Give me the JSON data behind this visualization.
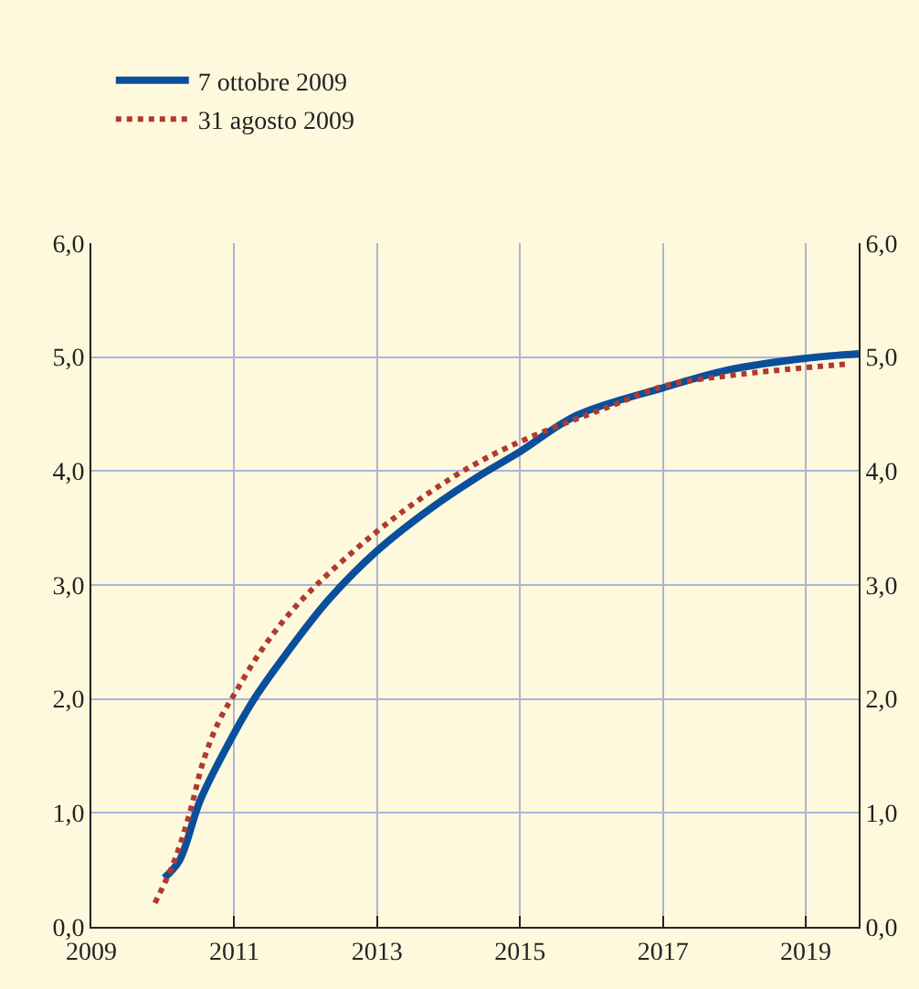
{
  "chart_data": {
    "type": "line",
    "xlim": [
      2009,
      2019.74
    ],
    "xticks": [
      2009,
      2011,
      2013,
      2015,
      2017,
      2019
    ],
    "ylim": [
      0,
      6
    ],
    "yticks": [
      {
        "value": 0,
        "label": "0,0"
      },
      {
        "value": 1,
        "label": "1,0"
      },
      {
        "value": 2,
        "label": "2,0"
      },
      {
        "value": 3,
        "label": "3,0"
      },
      {
        "value": 4,
        "label": "4,0"
      },
      {
        "value": 5,
        "label": "5,0"
      },
      {
        "value": 6,
        "label": "6,0"
      }
    ],
    "y2lim": [
      0,
      6
    ],
    "y2ticks": [
      {
        "value": 0,
        "label": "0,0"
      },
      {
        "value": 1,
        "label": "1,0"
      },
      {
        "value": 2,
        "label": "2,0"
      },
      {
        "value": 3,
        "label": "3,0"
      },
      {
        "value": 4,
        "label": "4,0"
      },
      {
        "value": 5,
        "label": "5,0"
      },
      {
        "value": 6,
        "label": "6,0"
      }
    ],
    "grid": true,
    "legend": "top left",
    "series": [
      {
        "name": "7 ottobre 2009",
        "color": "#0a4f9c",
        "line_style": "solid",
        "x": [
          2010.02,
          2010.23,
          2010.53,
          2011.0,
          2011.3,
          2011.72,
          2012.32,
          2013.0,
          2013.68,
          2014.36,
          2015.0,
          2015.8,
          2017.0,
          2017.93,
          2019.0,
          2019.74
        ],
        "values": [
          0.43,
          0.58,
          1.12,
          1.7,
          2.02,
          2.39,
          2.87,
          3.3,
          3.64,
          3.93,
          4.17,
          4.49,
          4.73,
          4.89,
          4.99,
          5.03
        ]
      },
      {
        "name": "31 agosto 2009",
        "color": "#b03a2e",
        "line_style": "dotted",
        "x": [
          2009.89,
          2010.15,
          2010.36,
          2010.57,
          2010.79,
          2011.02,
          2011.34,
          2011.72,
          2012.15,
          2012.94,
          2013.59,
          2014.31,
          2015.08,
          2016.27,
          2017.04,
          2018.1,
          2019.59
        ],
        "values": [
          0.21,
          0.56,
          0.96,
          1.46,
          1.81,
          2.06,
          2.39,
          2.71,
          3.0,
          3.44,
          3.75,
          4.04,
          4.28,
          4.57,
          4.75,
          4.85,
          4.94
        ]
      }
    ]
  }
}
